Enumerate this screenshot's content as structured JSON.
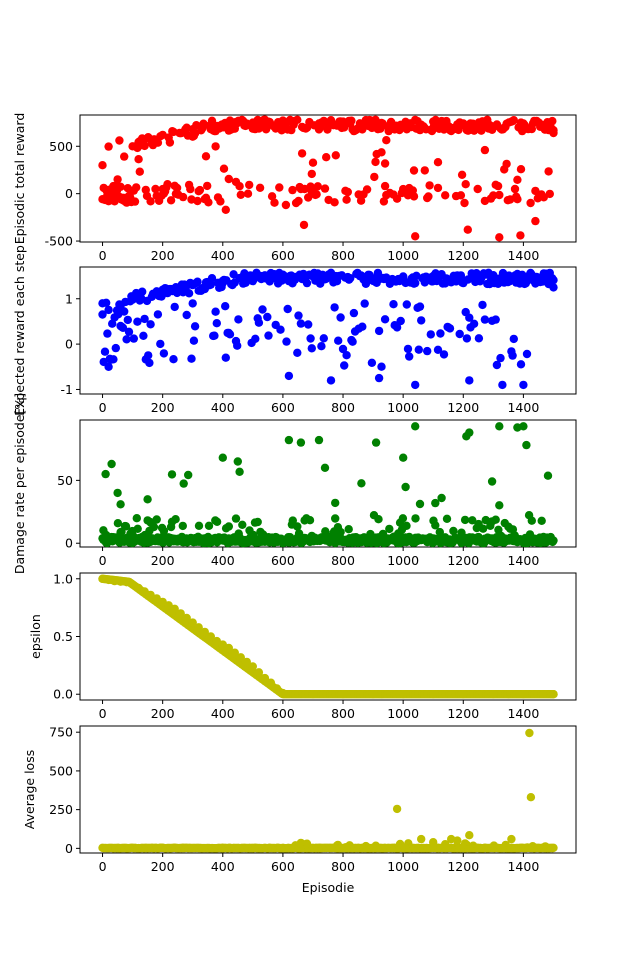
{
  "figure": {
    "xlabel": "Episodie"
  },
  "chart_data": [
    {
      "type": "scatter",
      "ylabel": "Episodic total reward",
      "xlim": [
        -75,
        1575
      ],
      "ylim": [
        -510,
        830
      ],
      "xticks": [
        0,
        200,
        400,
        600,
        800,
        1000,
        1200,
        1400
      ],
      "yticks": [
        -500,
        0,
        500
      ],
      "color": "#ff0000",
      "series_summary": {
        "x_range": [
          0,
          1500
        ],
        "upper_band": [
          500,
          780
        ],
        "lower_band": [
          -100,
          100
        ],
        "outliers_min": -460
      },
      "sample_points": [
        [
          0,
          300
        ],
        [
          20,
          -80
        ],
        [
          50,
          150
        ],
        [
          100,
          500
        ],
        [
          200,
          620
        ],
        [
          300,
          680
        ],
        [
          400,
          700
        ],
        [
          410,
          -170
        ],
        [
          500,
          750
        ],
        [
          600,
          720
        ],
        [
          610,
          -120
        ],
        [
          670,
          -330
        ],
        [
          720,
          740
        ],
        [
          800,
          760
        ],
        [
          900,
          740
        ],
        [
          1000,
          720
        ],
        [
          1040,
          -450
        ],
        [
          1100,
          760
        ],
        [
          1200,
          730
        ],
        [
          1215,
          -380
        ],
        [
          1320,
          -460
        ],
        [
          1390,
          -440
        ],
        [
          1440,
          -290
        ],
        [
          1500,
          640
        ]
      ]
    },
    {
      "type": "scatter",
      "ylabel": "Expected reward each step",
      "xlim": [
        -75,
        1575
      ],
      "ylim": [
        -1.1,
        1.7
      ],
      "xticks": [
        0,
        200,
        400,
        600,
        800,
        1000,
        1200,
        1400
      ],
      "yticks": [
        -1,
        0,
        1
      ],
      "color": "#0000ff",
      "series_summary": {
        "x_range": [
          0,
          1500
        ],
        "upper_band": [
          1.0,
          1.55
        ],
        "lower_band": [
          -0.8,
          0.8
        ],
        "outliers_min": -0.95
      },
      "sample_points": [
        [
          0,
          0.9
        ],
        [
          20,
          -0.5
        ],
        [
          60,
          0.4
        ],
        [
          120,
          1.1
        ],
        [
          200,
          1.2
        ],
        [
          300,
          1.3
        ],
        [
          400,
          1.35
        ],
        [
          410,
          -0.3
        ],
        [
          500,
          1.45
        ],
        [
          600,
          1.45
        ],
        [
          620,
          -0.7
        ],
        [
          700,
          1.5
        ],
        [
          760,
          -0.8
        ],
        [
          900,
          1.45
        ],
        [
          920,
          -0.75
        ],
        [
          1040,
          -0.9
        ],
        [
          1100,
          1.5
        ],
        [
          1220,
          -0.8
        ],
        [
          1300,
          1.5
        ],
        [
          1330,
          -0.9
        ],
        [
          1400,
          -0.9
        ],
        [
          1500,
          1.25
        ]
      ]
    },
    {
      "type": "scatter",
      "ylabel": "Damage rate per episode[%]",
      "xlim": [
        -75,
        1575
      ],
      "ylim": [
        -3,
        98
      ],
      "xticks": [
        0,
        200,
        400,
        600,
        800,
        1000,
        1200,
        1400
      ],
      "yticks": [
        0,
        50
      ],
      "color": "#008000",
      "series_summary": {
        "x_range": [
          0,
          1500
        ],
        "dense_band": [
          0,
          10
        ]
      },
      "sample_points": [
        [
          10,
          55
        ],
        [
          30,
          63
        ],
        [
          50,
          40
        ],
        [
          400,
          68
        ],
        [
          450,
          65
        ],
        [
          620,
          82
        ],
        [
          660,
          80
        ],
        [
          720,
          82
        ],
        [
          740,
          60
        ],
        [
          910,
          80
        ],
        [
          1000,
          68
        ],
        [
          1040,
          93
        ],
        [
          1210,
          85
        ],
        [
          1220,
          88
        ],
        [
          1320,
          93
        ],
        [
          1380,
          92
        ],
        [
          1400,
          93
        ],
        [
          1410,
          78
        ]
      ]
    },
    {
      "type": "scatter",
      "ylabel": "epsilon",
      "xlim": [
        -75,
        1575
      ],
      "ylim": [
        -0.05,
        1.05
      ],
      "xticks": [
        0,
        200,
        400,
        600,
        800,
        1000,
        1200,
        1400
      ],
      "yticks": [
        0.0,
        0.5,
        1.0
      ],
      "color": "#bfbf00",
      "points": [
        [
          0,
          1.0
        ],
        [
          20,
          0.99
        ],
        [
          40,
          0.98
        ],
        [
          60,
          0.975
        ],
        [
          80,
          0.97
        ],
        [
          100,
          0.95
        ],
        [
          120,
          0.92
        ],
        [
          140,
          0.89
        ],
        [
          160,
          0.86
        ],
        [
          180,
          0.83
        ],
        [
          200,
          0.8
        ],
        [
          220,
          0.77
        ],
        [
          240,
          0.74
        ],
        [
          260,
          0.7
        ],
        [
          280,
          0.66
        ],
        [
          300,
          0.62
        ],
        [
          320,
          0.58
        ],
        [
          340,
          0.54
        ],
        [
          360,
          0.5
        ],
        [
          380,
          0.46
        ],
        [
          400,
          0.43
        ],
        [
          420,
          0.4
        ],
        [
          440,
          0.36
        ],
        [
          460,
          0.32
        ],
        [
          480,
          0.28
        ],
        [
          500,
          0.24
        ],
        [
          520,
          0.19
        ],
        [
          540,
          0.14
        ],
        [
          560,
          0.1
        ],
        [
          580,
          0.05
        ],
        [
          600,
          0.01
        ],
        [
          700,
          0.0
        ],
        [
          800,
          0.0
        ],
        [
          900,
          0.0
        ],
        [
          1000,
          0.0
        ],
        [
          1100,
          0.0
        ],
        [
          1200,
          0.0
        ],
        [
          1300,
          0.0
        ],
        [
          1400,
          0.0
        ],
        [
          1500,
          0.0
        ]
      ]
    },
    {
      "type": "scatter",
      "ylabel": "Average loss",
      "xlim": [
        -75,
        1575
      ],
      "ylim": [
        -30,
        790
      ],
      "xticks": [
        0,
        200,
        400,
        600,
        800,
        1000,
        1200,
        1400
      ],
      "yticks": [
        0,
        250,
        500,
        750
      ],
      "color": "#bfbf00",
      "series_summary": {
        "x_range": [
          0,
          1500
        ],
        "baseline": 0
      },
      "sample_points": [
        [
          660,
          35
        ],
        [
          680,
          30
        ],
        [
          980,
          255
        ],
        [
          1060,
          60
        ],
        [
          1100,
          40
        ],
        [
          1160,
          60
        ],
        [
          1180,
          50
        ],
        [
          1220,
          85
        ],
        [
          1360,
          60
        ],
        [
          1420,
          745
        ],
        [
          1425,
          330
        ]
      ]
    }
  ]
}
